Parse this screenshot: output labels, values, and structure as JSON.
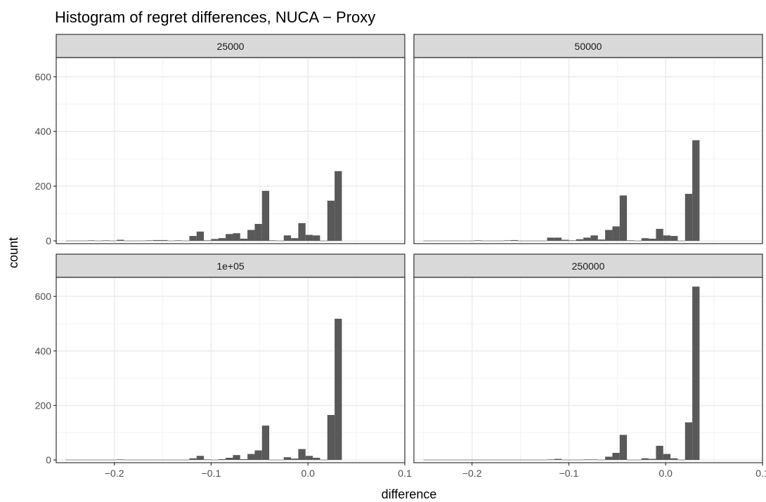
{
  "chart_data": {
    "type": "bar",
    "title": "Histogram of regret differences,  NUCA − Proxy",
    "xlabel": "difference",
    "ylabel": "count",
    "xlim": [
      -0.26,
      0.1
    ],
    "ylim": [
      -10,
      670
    ],
    "x_ticks": [
      -0.2,
      -0.1,
      0.0,
      0.1
    ],
    "x_tick_labels": [
      "−0.2",
      "−0.1",
      "0.0",
      "0.1"
    ],
    "y_ticks": [
      0,
      200,
      400,
      600
    ],
    "y_tick_labels": [
      "0",
      "200",
      "400",
      "600"
    ],
    "grid": true,
    "bin_width": 0.0075,
    "bin_start": -0.25,
    "facets": [
      {
        "label": "25000",
        "values": [
          1,
          1,
          1,
          2,
          1,
          2,
          1,
          4,
          1,
          1,
          1,
          2,
          3,
          3,
          1,
          2,
          1,
          18,
          34,
          2,
          7,
          10,
          25,
          28,
          8,
          40,
          62,
          183,
          2,
          1,
          20,
          10,
          65,
          22,
          20,
          1,
          147,
          255
        ]
      },
      {
        "label": "50000",
        "values": [
          1,
          1,
          1,
          1,
          1,
          1,
          1,
          2,
          1,
          1,
          1,
          2,
          3,
          1,
          1,
          1,
          1,
          12,
          12,
          4,
          2,
          6,
          12,
          20,
          5,
          40,
          53,
          166,
          2,
          1,
          10,
          8,
          44,
          20,
          18,
          1,
          172,
          368
        ]
      },
      {
        "label": "1e+05",
        "values": [
          1,
          1,
          1,
          1,
          1,
          1,
          1,
          2,
          1,
          1,
          1,
          1,
          1,
          1,
          1,
          1,
          1,
          6,
          15,
          2,
          1,
          3,
          8,
          18,
          3,
          22,
          35,
          126,
          1,
          1,
          10,
          5,
          40,
          15,
          8,
          1,
          165,
          518
        ]
      },
      {
        "label": "250000",
        "values": [
          1,
          1,
          1,
          1,
          1,
          1,
          1,
          1,
          1,
          1,
          1,
          1,
          1,
          1,
          1,
          1,
          1,
          2,
          4,
          1,
          1,
          1,
          2,
          2,
          1,
          12,
          26,
          92,
          1,
          1,
          6,
          4,
          52,
          22,
          6,
          1,
          138,
          636
        ]
      }
    ]
  }
}
